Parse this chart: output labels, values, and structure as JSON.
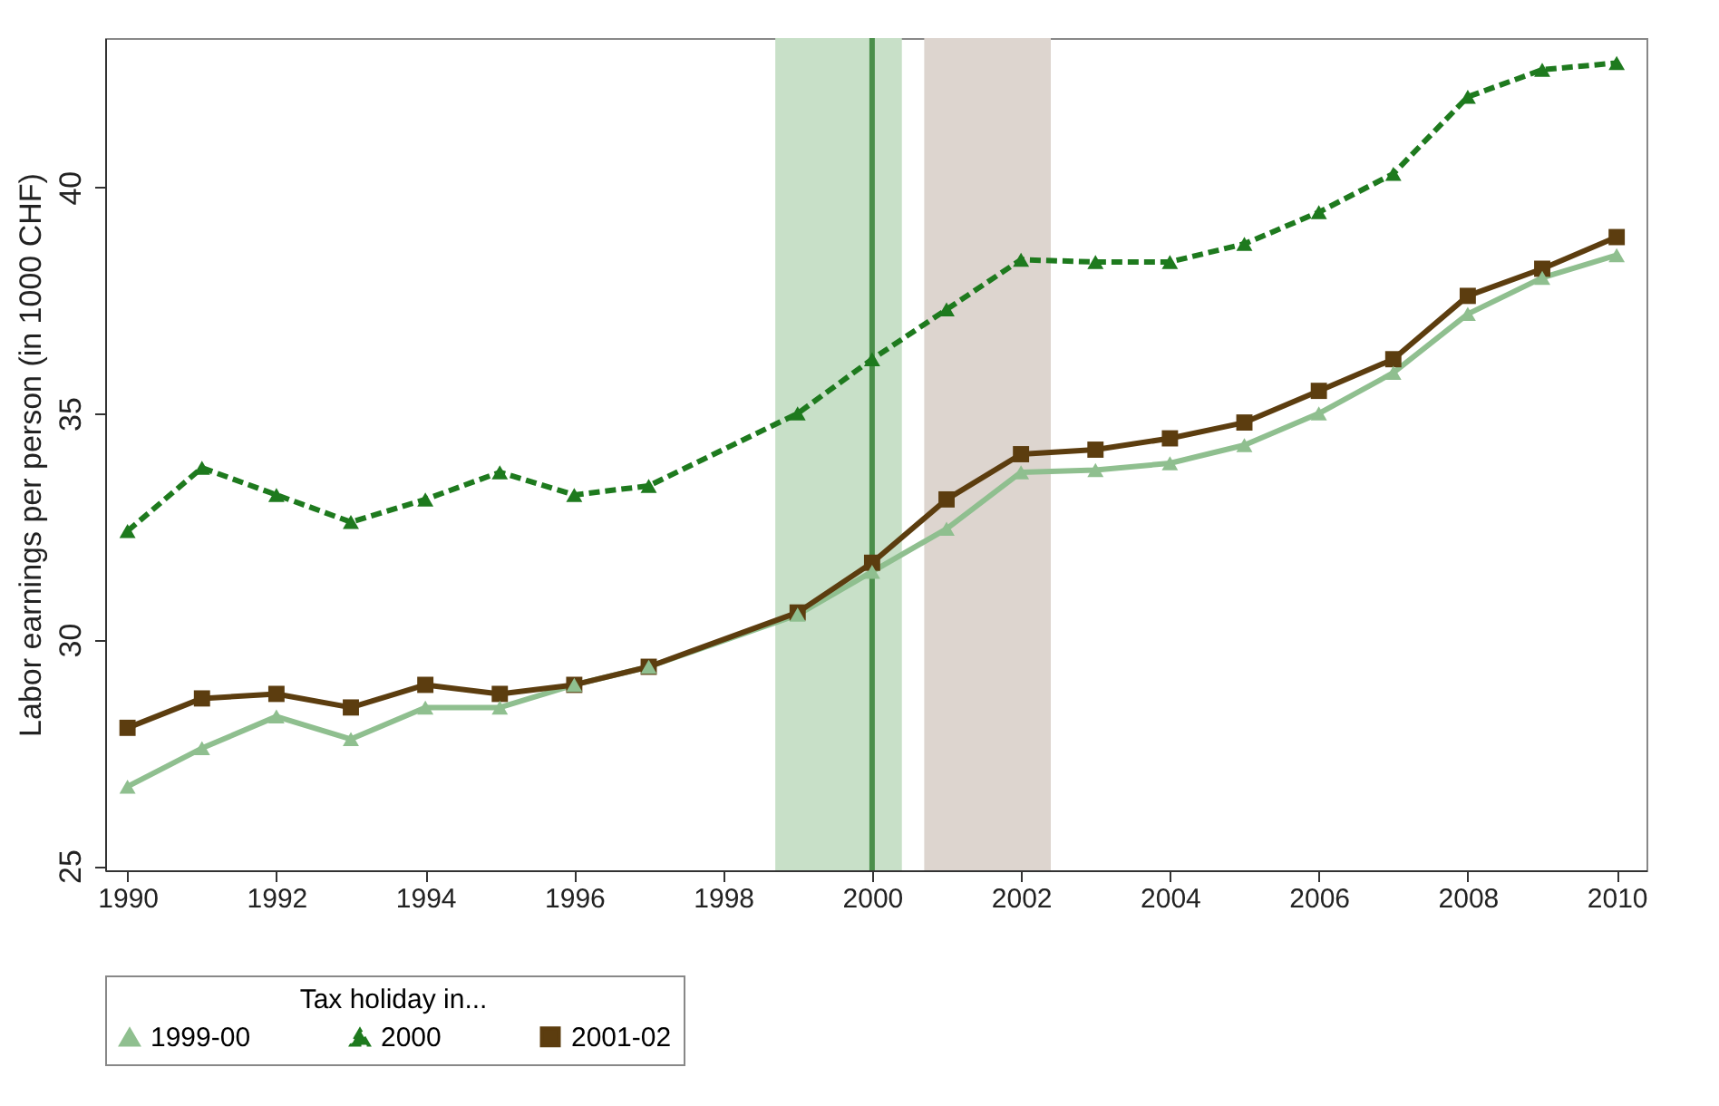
{
  "chart_data": {
    "type": "line",
    "xlabel": null,
    "ylabel": "Labor earnings per person (in 1000 CHF)",
    "legend_title": "Tax holiday in...",
    "xlim": [
      1989.7,
      2010.4
    ],
    "xticks": [
      1990,
      1992,
      1994,
      1996,
      1998,
      2000,
      2002,
      2004,
      2006,
      2008,
      2010
    ],
    "ylim": [
      24.9,
      43.3
    ],
    "yticks": [
      25,
      30,
      35,
      40
    ],
    "grid": false,
    "legend": "bottom",
    "series": [
      {
        "name": "1999-00",
        "color": "#8fbf8f",
        "line_style": "solid",
        "marker": "triangle",
        "x": [
          1990,
          1991,
          1992,
          1993,
          1994,
          1995,
          1996,
          1997,
          1999,
          2000,
          2001,
          2002,
          2003,
          2004,
          2005,
          2006,
          2007,
          2008,
          2009,
          2010
        ],
        "values": [
          26.75,
          27.6,
          28.3,
          27.8,
          28.5,
          28.5,
          29.0,
          29.4,
          30.55,
          31.5,
          32.45,
          33.7,
          33.75,
          33.9,
          34.3,
          35.0,
          35.9,
          37.2,
          38.0,
          38.5
        ]
      },
      {
        "name": "2000",
        "color": "#1e7a1e",
        "line_style": "dashed",
        "marker": "triangle",
        "x": [
          1990,
          1991,
          1992,
          1993,
          1994,
          1995,
          1996,
          1997,
          1999,
          2000,
          2001,
          2002,
          2003,
          2004,
          2005,
          2006,
          2007,
          2008,
          2009,
          2010
        ],
        "values": [
          32.4,
          33.8,
          33.2,
          32.6,
          33.1,
          33.7,
          33.2,
          33.4,
          35.0,
          36.2,
          37.3,
          38.4,
          38.35,
          38.35,
          38.75,
          39.45,
          40.3,
          42.0,
          42.6,
          42.75
        ]
      },
      {
        "name": "2001-02",
        "color": "#5c3d0f",
        "line_style": "solid",
        "marker": "square",
        "x": [
          1990,
          1991,
          1992,
          1993,
          1994,
          1995,
          1996,
          1997,
          1999,
          2000,
          2001,
          2002,
          2003,
          2004,
          2005,
          2006,
          2007,
          2008,
          2009,
          2010
        ],
        "values": [
          28.05,
          28.7,
          28.8,
          28.5,
          29.0,
          28.8,
          29.0,
          29.4,
          30.6,
          31.7,
          33.1,
          34.1,
          34.2,
          34.45,
          34.8,
          35.5,
          36.2,
          37.6,
          38.2,
          38.9
        ]
      }
    ],
    "bands": [
      {
        "axis": "x",
        "from": 1998.7,
        "to": 2000.4,
        "color": "#c8e0c8"
      },
      {
        "axis": "x",
        "from": 2000.7,
        "to": 2002.4,
        "color": "#ddd5cf"
      }
    ],
    "ref_lines": [
      {
        "axis": "x",
        "value": 2000,
        "color": "#4a8f4a"
      }
    ]
  }
}
